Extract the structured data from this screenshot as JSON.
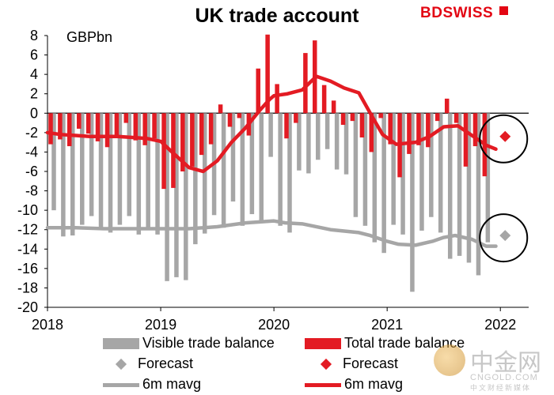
{
  "header": {
    "title": "UK trade account",
    "logo": "BDSWISS"
  },
  "watermark": {
    "name": "中金网",
    "url": "CNGOLD.COM",
    "tagline": "中文财经新媒体"
  },
  "chart_data": {
    "type": "bar",
    "title": "UK trade account",
    "ylabel": "GBPbn",
    "ylim": [
      -20,
      8
    ],
    "yticks": [
      8,
      6,
      4,
      2,
      0,
      -2,
      -4,
      -6,
      -8,
      -10,
      -12,
      -14,
      -16,
      -18,
      -20
    ],
    "xlim": [
      2018.0,
      2022.25
    ],
    "xticks": [
      2018,
      2019,
      2020,
      2021,
      2022
    ],
    "series": [
      {
        "name": "Visible trade balance",
        "type": "bar",
        "color": "#a6a6a6",
        "x": [
          2018.042,
          2018.125,
          2018.208,
          2018.292,
          2018.375,
          2018.458,
          2018.542,
          2018.625,
          2018.708,
          2018.792,
          2018.875,
          2018.958,
          2019.042,
          2019.125,
          2019.208,
          2019.292,
          2019.375,
          2019.458,
          2019.542,
          2019.625,
          2019.708,
          2019.792,
          2019.875,
          2019.958,
          2020.042,
          2020.125,
          2020.208,
          2020.292,
          2020.375,
          2020.458,
          2020.542,
          2020.625,
          2020.708,
          2020.792,
          2020.875,
          2020.958,
          2021.042,
          2021.125,
          2021.208,
          2021.292,
          2021.375,
          2021.458,
          2021.542,
          2021.625,
          2021.708,
          2021.792,
          2021.875
        ],
        "values": [
          -10,
          -12.7,
          -12.6,
          -11.5,
          -10.6,
          -11.8,
          -12.3,
          -11.5,
          -10.6,
          -12.5,
          -11.8,
          -12.5,
          -17.3,
          -16.9,
          -17.2,
          -13.5,
          -12.4,
          -10.5,
          -11.8,
          -9.1,
          -11.6,
          -10.4,
          -11.2,
          -4.5,
          -11.6,
          -12.3,
          -5.9,
          -6.2,
          -4.8,
          -3.7,
          -5.8,
          -6.3,
          -10.7,
          -11.6,
          -13.3,
          -14.4,
          -11.5,
          -12.5,
          -18.4,
          -12.1,
          -10.7,
          -12.3,
          -15,
          -14.7,
          -15.4,
          -16.7,
          -13.3
        ]
      },
      {
        "name": "Total trade balance",
        "type": "bar",
        "color": "#e31b23",
        "x": [
          2018.042,
          2018.125,
          2018.208,
          2018.292,
          2018.375,
          2018.458,
          2018.542,
          2018.625,
          2018.708,
          2018.792,
          2018.875,
          2018.958,
          2019.042,
          2019.125,
          2019.208,
          2019.292,
          2019.375,
          2019.458,
          2019.542,
          2019.625,
          2019.708,
          2019.792,
          2019.875,
          2019.958,
          2020.042,
          2020.125,
          2020.208,
          2020.292,
          2020.375,
          2020.458,
          2020.542,
          2020.625,
          2020.708,
          2020.792,
          2020.875,
          2020.958,
          2021.042,
          2021.125,
          2021.208,
          2021.292,
          2021.375,
          2021.458,
          2021.542,
          2021.625,
          2021.708,
          2021.792,
          2021.875
        ],
        "values": [
          -3.2,
          -2.7,
          -3.4,
          -1.6,
          -2.1,
          -2.9,
          -3.5,
          -2.3,
          -1,
          -2.8,
          -3.3,
          -2.6,
          -7.8,
          -7.7,
          -6,
          -5.5,
          -4.3,
          -3.2,
          0.9,
          -1.4,
          -0.5,
          -2.3,
          4.6,
          8.1,
          3,
          -2.6,
          -1,
          6.2,
          7.5,
          2.9,
          1.3,
          -1.2,
          -0.8,
          -2.5,
          -4,
          -0.5,
          -3.2,
          -6.6,
          -4.2,
          -3.3,
          -3.5,
          -0.8,
          1.5,
          -1,
          -5.5,
          -3.4,
          -6.5
        ]
      },
      {
        "name": "6m mavg",
        "type": "line",
        "color": "#a6a6a6",
        "x": [
          2018.0,
          2018.25,
          2018.5,
          2018.75,
          2019.0,
          2019.25,
          2019.5,
          2019.75,
          2020.0,
          2020.1,
          2020.25,
          2020.5,
          2020.75,
          2020.85,
          2021.0,
          2021.1,
          2021.25,
          2021.4,
          2021.5,
          2021.6,
          2021.75,
          2021.875,
          2021.96
        ],
        "values": [
          -11.8,
          -11.8,
          -11.9,
          -11.9,
          -11.9,
          -11.9,
          -11.7,
          -11.3,
          -11.1,
          -11.3,
          -11.4,
          -12.0,
          -12.3,
          -12.6,
          -13.2,
          -13.5,
          -13.6,
          -13.2,
          -12.8,
          -12.6,
          -13.0,
          -13.7,
          -13.7
        ]
      },
      {
        "name": "6m mavg",
        "type": "line",
        "color": "#e31b23",
        "x": [
          2018.0,
          2018.12,
          2018.25,
          2018.375,
          2018.5,
          2018.62,
          2018.75,
          2018.875,
          2019.0,
          2019.1,
          2019.25,
          2019.375,
          2019.5,
          2019.625,
          2019.75,
          2019.875,
          2019.96,
          2020.0,
          2020.12,
          2020.25,
          2020.375,
          2020.5,
          2020.62,
          2020.75,
          2020.875,
          2020.96,
          2021.08,
          2021.25,
          2021.375,
          2021.5,
          2021.625,
          2021.75,
          2021.875,
          2021.96
        ],
        "values": [
          -2.0,
          -2.2,
          -2.3,
          -2.4,
          -2.4,
          -2.4,
          -2.5,
          -2.6,
          -2.9,
          -4.0,
          -5.6,
          -6.0,
          -4.9,
          -3.0,
          -1.5,
          0.3,
          1.4,
          1.8,
          2.0,
          2.4,
          3.8,
          3.3,
          2.6,
          2.1,
          -0.5,
          -2.2,
          -3.2,
          -3.0,
          -2.4,
          -1.4,
          -1.3,
          -2.3,
          -3.3,
          -3.7
        ]
      },
      {
        "name": "Forecast",
        "type": "scatter",
        "marker": "diamond",
        "color": "#a6a6a6",
        "x": [
          2022.042
        ],
        "values": [
          -12.6
        ]
      },
      {
        "name": "Forecast",
        "type": "scatter",
        "marker": "diamond",
        "color": "#e31b23",
        "x": [
          2022.042
        ],
        "values": [
          -2.4
        ]
      }
    ],
    "annotations": [
      "circle around forecast points"
    ],
    "legend": {
      "position": "bottom",
      "items": [
        {
          "label": "Visible trade balance",
          "kind": "bar",
          "color": "#a6a6a6"
        },
        {
          "label": "Total trade balance",
          "kind": "bar",
          "color": "#e31b23"
        },
        {
          "label": "Forecast",
          "kind": "diamond",
          "color": "#a6a6a6"
        },
        {
          "label": "Forecast",
          "kind": "diamond",
          "color": "#e31b23"
        },
        {
          "label": "6m mavg",
          "kind": "line",
          "color": "#a6a6a6"
        },
        {
          "label": "6m mavg",
          "kind": "line",
          "color": "#e31b23"
        }
      ]
    }
  }
}
